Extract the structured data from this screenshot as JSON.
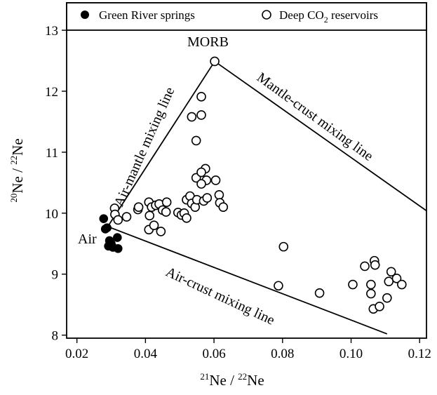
{
  "chart_data": {
    "type": "scatter",
    "xlabel": {
      "sup": "21",
      "main": "Ne / ",
      "sup2": "22",
      "main2": "Ne"
    },
    "ylabel": {
      "sup": "20",
      "main": "Ne / ",
      "sup2": "22",
      "main2": "Ne"
    },
    "xlim": [
      0.017,
      0.122
    ],
    "ylim": [
      7.95,
      13.45
    ],
    "xticks": [
      0.02,
      0.04,
      0.06,
      0.08,
      0.1,
      0.12
    ],
    "xtick_labels": [
      "0.02",
      "0.04",
      "0.06",
      "0.08",
      "0.10",
      "0.12"
    ],
    "yticks": [
      8,
      9,
      10,
      11,
      12,
      13
    ],
    "ytick_labels": [
      "8",
      "9",
      "10",
      "11",
      "12",
      "13"
    ],
    "legend": {
      "placement": "top",
      "items": [
        {
          "label": "Green River springs",
          "marker": "filled-circle"
        },
        {
          "label_pre": "Deep CO",
          "label_sub": "2",
          "label_post": " reservoirs",
          "marker": "open-circle"
        }
      ]
    },
    "series": [
      {
        "name": "Green River springs",
        "marker": "filled-circle",
        "points": [
          [
            0.0278,
            9.91
          ],
          [
            0.0283,
            9.74
          ],
          [
            0.0288,
            9.76
          ],
          [
            0.0295,
            9.55
          ],
          [
            0.0292,
            9.46
          ],
          [
            0.03,
            9.5
          ],
          [
            0.0305,
            9.44
          ],
          [
            0.0318,
            9.6
          ],
          [
            0.032,
            9.42
          ]
        ]
      },
      {
        "name": "Deep CO2 reservoirs",
        "marker": "open-circle",
        "points": [
          [
            0.0602,
            12.49
          ],
          [
            0.0563,
            11.91
          ],
          [
            0.0535,
            11.58
          ],
          [
            0.0563,
            11.61
          ],
          [
            0.0548,
            11.19
          ],
          [
            0.0575,
            10.73
          ],
          [
            0.0548,
            10.58
          ],
          [
            0.0563,
            10.67
          ],
          [
            0.0578,
            10.54
          ],
          [
            0.0563,
            10.48
          ],
          [
            0.0605,
            10.54
          ],
          [
            0.031,
            10.08
          ],
          [
            0.0311,
            9.98
          ],
          [
            0.032,
            9.89
          ],
          [
            0.0345,
            9.94
          ],
          [
            0.0378,
            10.06
          ],
          [
            0.038,
            10.1
          ],
          [
            0.041,
            10.18
          ],
          [
            0.0418,
            10.1
          ],
          [
            0.043,
            10.13
          ],
          [
            0.044,
            10.15
          ],
          [
            0.045,
            10.05
          ],
          [
            0.0462,
            10.18
          ],
          [
            0.046,
            10.02
          ],
          [
            0.0412,
            9.96
          ],
          [
            0.041,
            9.73
          ],
          [
            0.0425,
            9.8
          ],
          [
            0.0445,
            9.7
          ],
          [
            0.0495,
            10.01
          ],
          [
            0.0505,
            9.97
          ],
          [
            0.0513,
            10.0
          ],
          [
            0.052,
            9.92
          ],
          [
            0.052,
            10.22
          ],
          [
            0.053,
            10.28
          ],
          [
            0.0535,
            10.16
          ],
          [
            0.0545,
            10.1
          ],
          [
            0.055,
            10.22
          ],
          [
            0.057,
            10.2
          ],
          [
            0.058,
            10.25
          ],
          [
            0.0615,
            10.3
          ],
          [
            0.0617,
            10.17
          ],
          [
            0.0627,
            10.1
          ],
          [
            0.0803,
            9.45
          ],
          [
            0.0788,
            8.81
          ],
          [
            0.0908,
            8.69
          ],
          [
            0.1005,
            8.83
          ],
          [
            0.104,
            9.13
          ],
          [
            0.1058,
            8.83
          ],
          [
            0.1058,
            8.68
          ],
          [
            0.1068,
            9.22
          ],
          [
            0.107,
            9.15
          ],
          [
            0.1065,
            8.43
          ],
          [
            0.1083,
            8.47
          ],
          [
            0.1105,
            8.61
          ],
          [
            0.111,
            8.88
          ],
          [
            0.1117,
            9.04
          ],
          [
            0.1133,
            8.93
          ],
          [
            0.1148,
            8.83
          ]
        ]
      }
    ],
    "lines": [
      {
        "name": "Air-mantle mixing line",
        "from": [
          0.029,
          9.78
        ],
        "to": [
          0.0602,
          12.49
        ]
      },
      {
        "name": "Mantle-crust mixing line",
        "from": [
          0.0602,
          12.49
        ],
        "to": [
          0.123,
          10.0
        ]
      },
      {
        "name": "Air-crust mixing line",
        "from": [
          0.029,
          9.78
        ],
        "to": [
          0.1105,
          8.02
        ]
      }
    ],
    "annotations": {
      "air_mantle": "Air-mantle mixing line",
      "mantle_crust": "Mantle-crust mixing line",
      "air_crust": "Air-crust mixing line",
      "morb": "MORB",
      "air": "Air"
    }
  }
}
